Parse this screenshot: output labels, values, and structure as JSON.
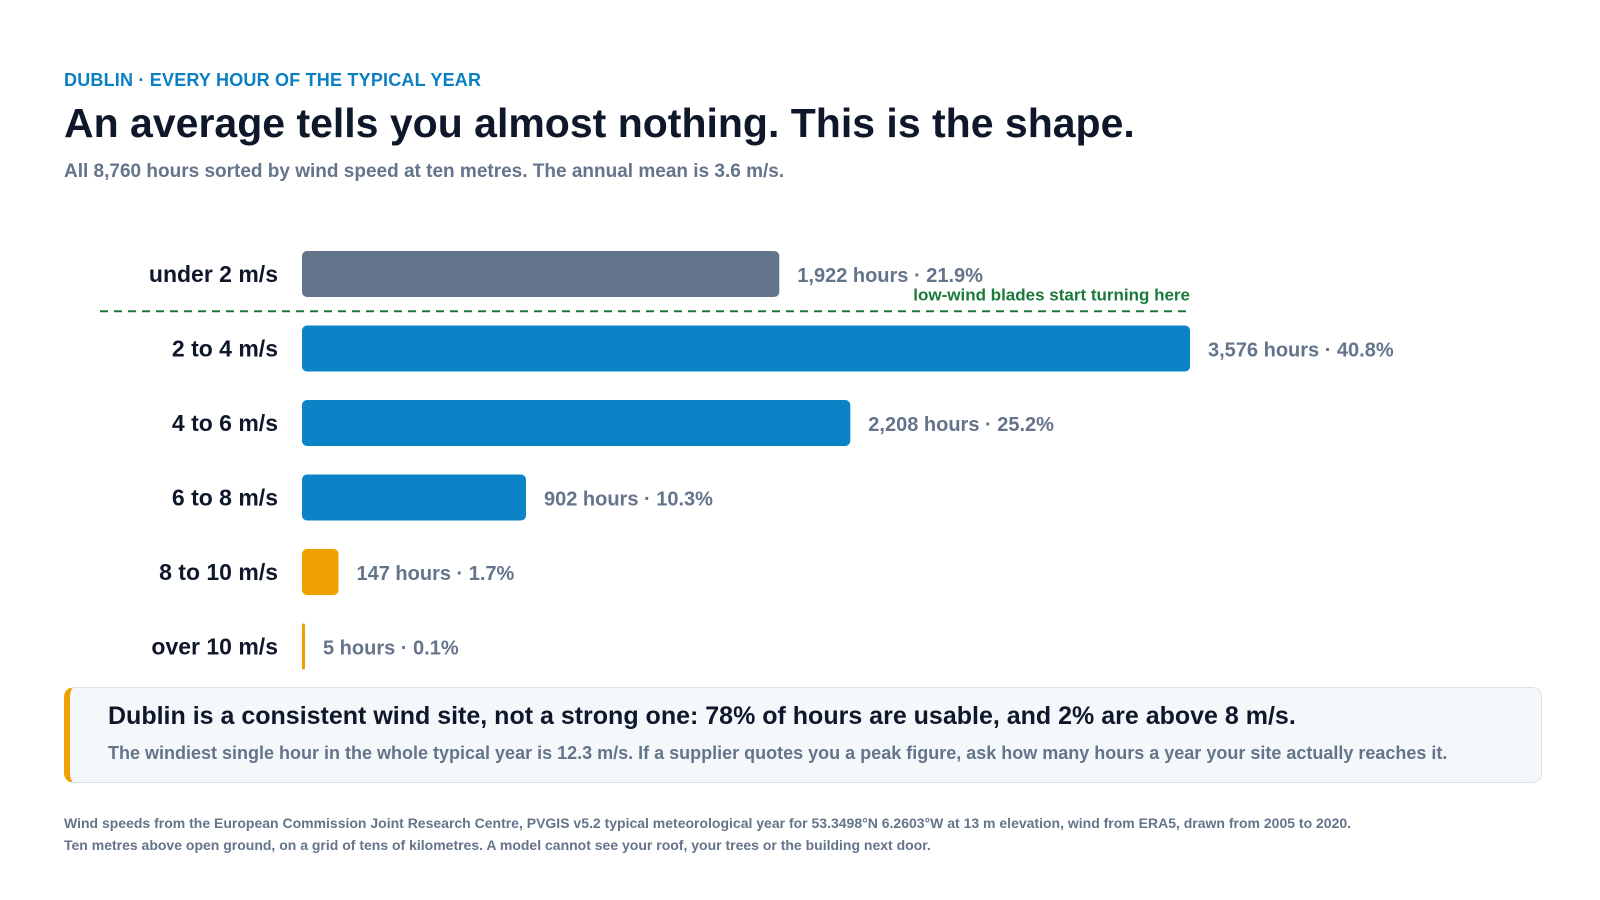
{
  "header": {
    "eyebrow": "DUBLIN · EVERY HOUR OF THE TYPICAL YEAR",
    "title": "An average tells you almost nothing. This is the shape.",
    "subtitle": "All 8,760 hours sorted by wind speed at ten metres. The annual mean is 3.6 m/s."
  },
  "chart_data": {
    "type": "bar",
    "orientation": "horizontal",
    "categories": [
      "under 2 m/s",
      "2 to 4 m/s",
      "4 to 6 m/s",
      "6 to 8 m/s",
      "8 to 10 m/s",
      "over 10 m/s"
    ],
    "values": [
      1922,
      3576,
      2208,
      902,
      147,
      5
    ],
    "percents": [
      21.9,
      40.8,
      25.2,
      10.3,
      1.7,
      0.1
    ],
    "value_labels": [
      "1,922 hours · 21.9%",
      "3,576 hours · 40.8%",
      "2,208 hours · 25.2%",
      "902 hours · 10.3%",
      "147 hours · 1.7%",
      "5 hours · 0.1%"
    ],
    "bar_colors": [
      "#64748b",
      "#0a84c6",
      "#0a84c6",
      "#0a84c6",
      "#f0a000",
      "#f0a000"
    ],
    "xlim": [
      0,
      3576
    ],
    "grid": false,
    "legend": "none",
    "threshold": {
      "after_category": "under 2 m/s",
      "label": "low-wind blades start turning here",
      "color": "#1a7a3a"
    }
  },
  "callout": {
    "headline": "Dublin is a consistent wind site, not a strong one: 78% of hours are usable, and 2% are above 8 m/s.",
    "body": "The windiest single hour in the whole typical year is 12.3 m/s. If a supplier quotes you a peak figure, ask how many hours a year your site actually reaches it.",
    "accent_color": "#f0a000"
  },
  "footnote": {
    "line1": "Wind speeds from the European Commission Joint Research Centre, PVGIS v5.2 typical meteorological year for 53.3498°N 6.2603°W at 13 m elevation, wind from ERA5, drawn from 2005 to 2020.",
    "line2": "Ten metres above open ground, on a grid of tens of kilometres. A model cannot see your roof, your trees or the building next door."
  }
}
